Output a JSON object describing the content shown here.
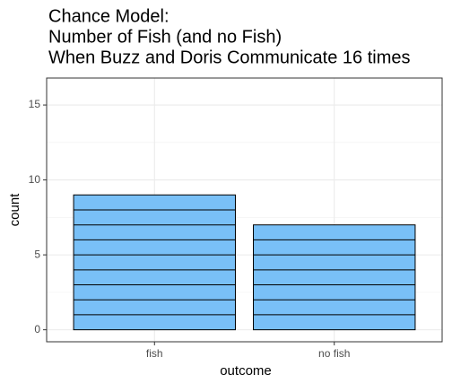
{
  "chart_data": {
    "type": "bar",
    "title": [
      "Chance Model:",
      "Number of Fish (and no Fish)",
      "When Buzz and Doris Communicate 16 times"
    ],
    "x_label": "outcome",
    "y_label": "count",
    "categories": [
      "fish",
      "no fish"
    ],
    "values": [
      9,
      7
    ],
    "color": "#79c0f7",
    "edge_color": "#000000",
    "ylim": [
      -0.8,
      16.8
    ],
    "yticks": [
      0,
      5,
      10,
      15
    ],
    "minor_yticks": [
      2.5,
      7.5,
      12.5
    ],
    "grid": true
  }
}
